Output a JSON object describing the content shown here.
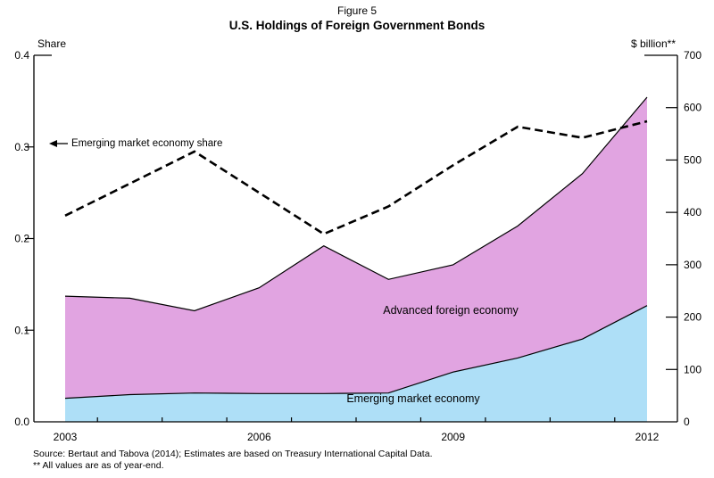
{
  "figure": {
    "label": "Figure 5",
    "title": "U.S. Holdings of Foreign Government Bonds"
  },
  "axes": {
    "left": {
      "title": "Share",
      "tick_labels": [
        "0.0",
        "0.1",
        "0.2",
        "0.3",
        "0.4"
      ]
    },
    "right": {
      "title": "$ billion**",
      "tick_labels": [
        "0",
        "100",
        "200",
        "300",
        "400",
        "500",
        "600",
        "700"
      ]
    },
    "x": {
      "labeled_years": [
        "2003",
        "2006",
        "2009",
        "2012"
      ]
    }
  },
  "annotations": {
    "dashed_line_label": "Emerging market economy share",
    "advanced_area_label": "Advanced foreign economy",
    "emerging_area_label": "Emerging market economy"
  },
  "footnotes": {
    "source": "Source: Bertaut and Tabova (2014); Estimates are based on Treasury International Capital Data.",
    "note": "** All values are as of year-end."
  },
  "colors": {
    "advanced_area": "#E1A4E1",
    "emerging_area": "#AEDFF7",
    "dashed_line": "#000000",
    "axis": "#000000"
  },
  "chart_data": {
    "type": "area",
    "title": "U.S. Holdings of Foreign Government Bonds",
    "x": [
      2003,
      2004,
      2005,
      2006,
      2007,
      2008,
      2009,
      2010,
      2011,
      2012
    ],
    "x_labeled_ticks": [
      2003,
      2006,
      2009,
      2012
    ],
    "left_axis": {
      "label": "Share",
      "range": [
        0,
        0.4
      ],
      "tick_step": 0.1
    },
    "right_axis": {
      "label": "$ billion",
      "range": [
        0,
        700
      ],
      "tick_step": 100
    },
    "grid": false,
    "legend_position": "in-plot text annotations",
    "series": [
      {
        "name": "Emerging market economy",
        "type": "area",
        "stack": "holdings",
        "axis": "right",
        "unit": "$ billion",
        "color": "#AEDFF7",
        "values": [
          45,
          52,
          55,
          54,
          54,
          55,
          95,
          122,
          158,
          222
        ]
      },
      {
        "name": "Advanced foreign economy",
        "type": "area",
        "stack": "holdings",
        "axis": "right",
        "unit": "$ billion",
        "color": "#E1A4E1",
        "values": [
          195,
          184,
          157,
          202,
          282,
          217,
          205,
          252,
          316,
          398
        ]
      },
      {
        "name": "Emerging market economy share",
        "type": "line",
        "line_style": "dashed",
        "axis": "left",
        "unit": "share",
        "color": "#000000",
        "values": [
          0.225,
          0.26,
          0.295,
          0.25,
          0.205,
          0.235,
          0.28,
          0.322,
          0.31,
          0.328
        ]
      }
    ],
    "stack_totals_usd_billion": [
      240,
      236,
      212,
      256,
      336,
      272,
      300,
      374,
      474,
      620
    ]
  }
}
